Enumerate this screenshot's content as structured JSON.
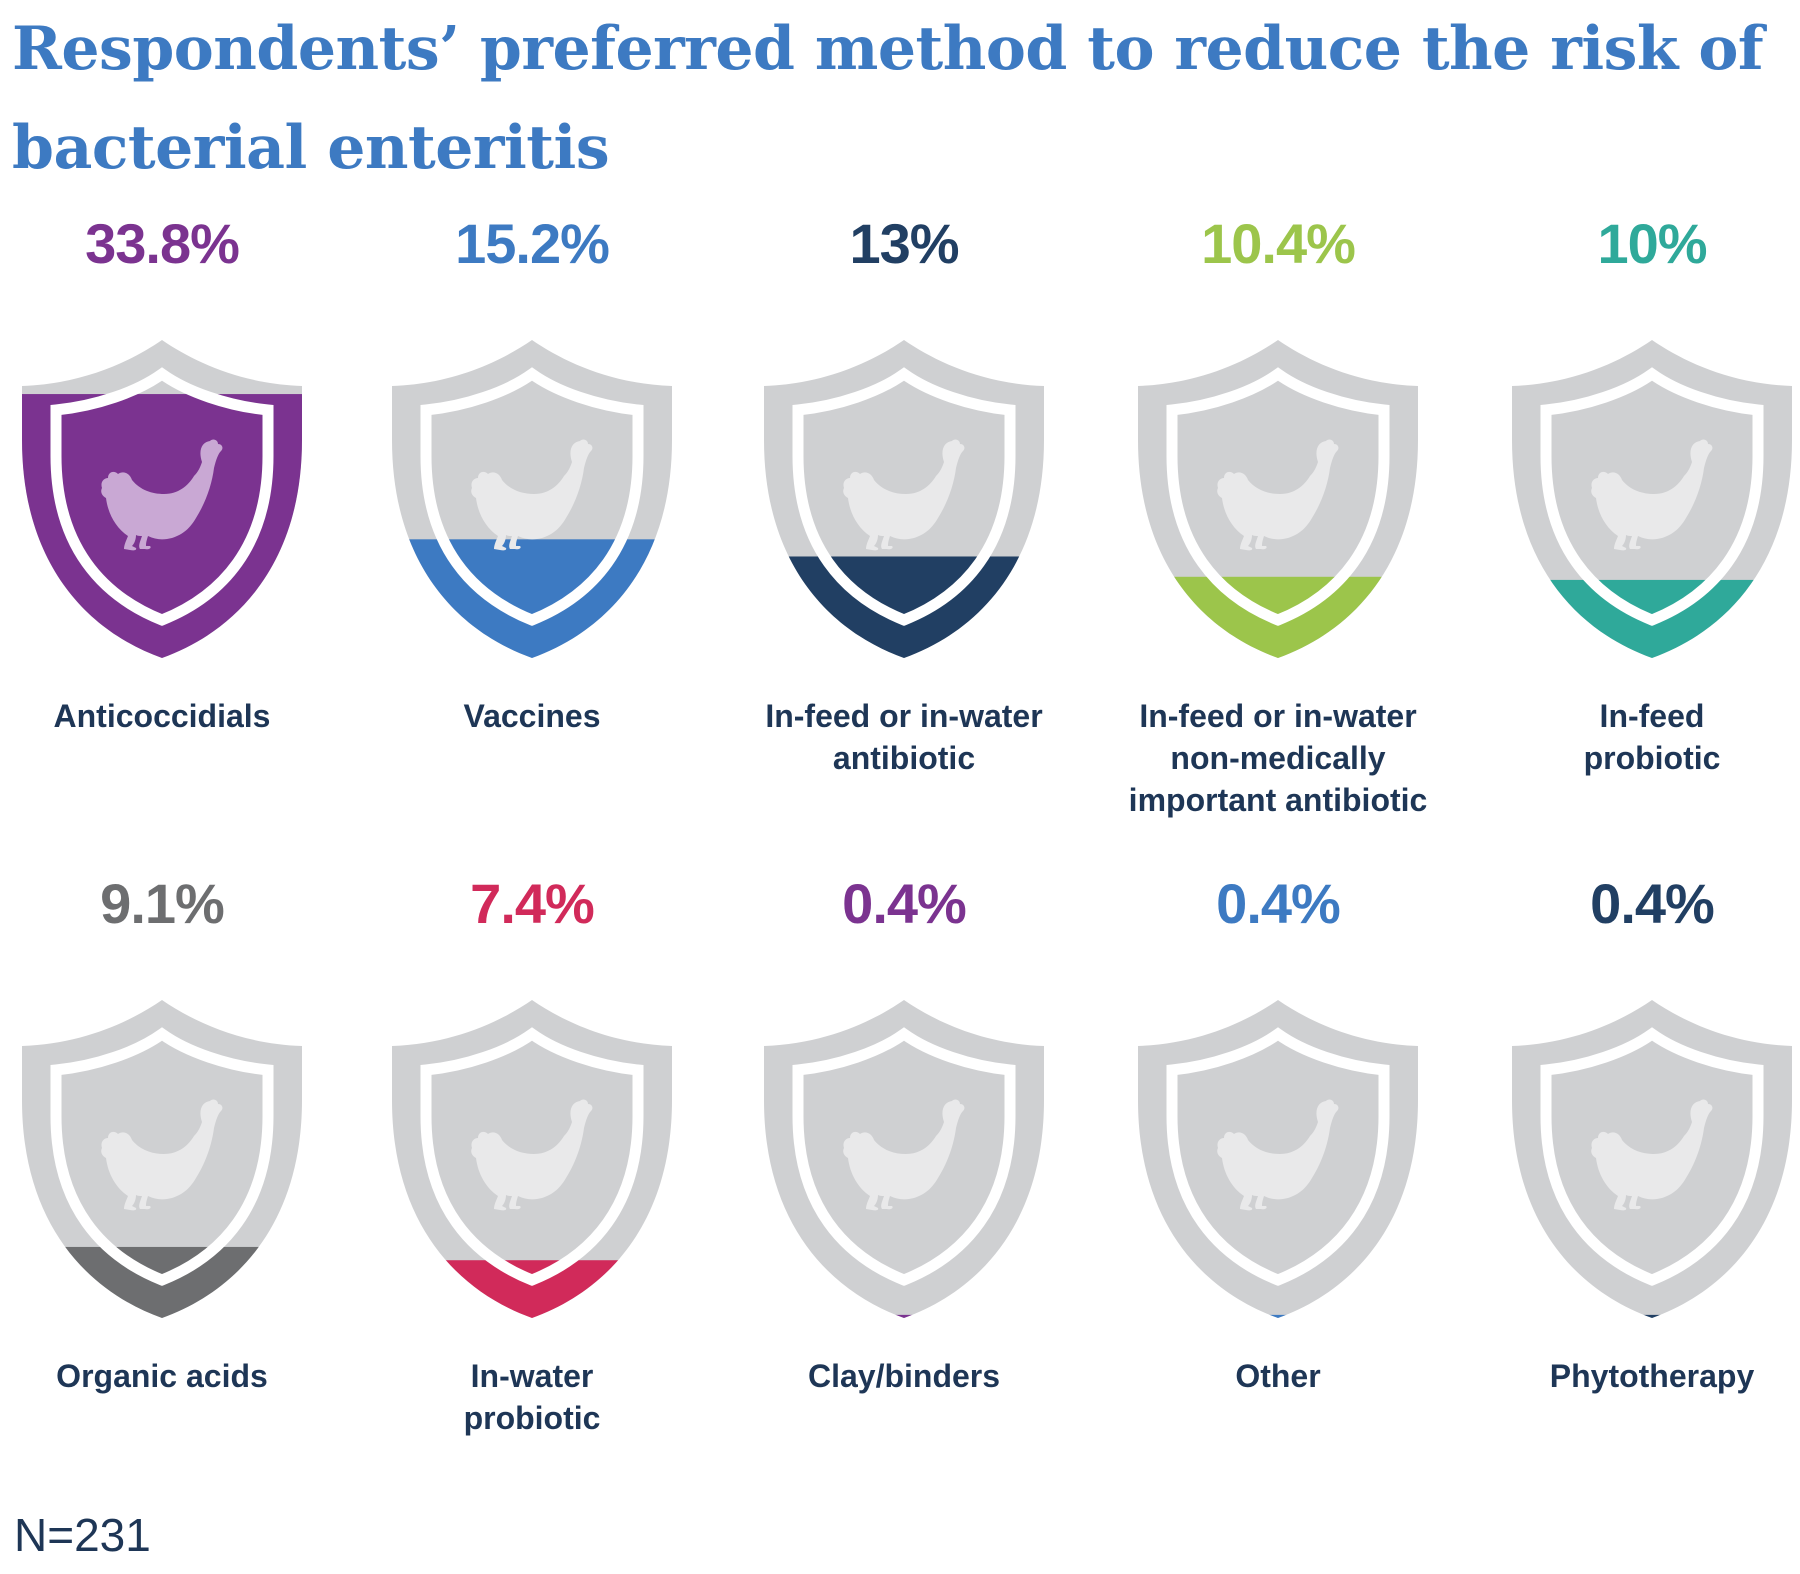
{
  "chart_data": {
    "type": "pictograph",
    "title": "Respondents’ preferred method to reduce the risk of bacterial enteritis",
    "unit": "%",
    "categories": [
      "Anticoccidials",
      "Vaccines",
      "In-feed or in-water antibiotic",
      "In-feed or in-water non-medically important antibiotic",
      "In-feed probiotic",
      "Organic acids",
      "In-water probiotic",
      "Clay/binders",
      "Other",
      "Phytotherapy"
    ],
    "values": [
      33.8,
      15.2,
      13,
      10.4,
      10,
      9.1,
      7.4,
      0.4,
      0.4,
      0.4
    ],
    "value_labels": [
      "33.8%",
      "15.2%",
      "13%",
      "10.4%",
      "10%",
      "9.1%",
      "7.4%",
      "0.4%",
      "0.4%",
      "0.4%"
    ],
    "category_labels": [
      "Anticoccidials",
      "Vaccines",
      "In-feed or in-water\nantibiotic",
      "In-feed or in-water\nnon-medically\nimportant antibiotic",
      "In-feed\nprobiotic",
      "Organic acids",
      "In-water\nprobiotic",
      "Clay/binders",
      "Other",
      "Phytotherapy"
    ],
    "colors": [
      "#7b3390",
      "#3d7ac2",
      "#213f63",
      "#9cc54b",
      "#2fa99a",
      "#6d6e70",
      "#d12a5a",
      "#7b3390",
      "#3d7ac2",
      "#213f63"
    ],
    "icon": "chicken-icon",
    "shield_colors": {
      "empty": "#cfd0d2",
      "chicken": "#e9e9ea",
      "chicken_filled": "#c9a8d4"
    }
  },
  "footnote": "N=231"
}
